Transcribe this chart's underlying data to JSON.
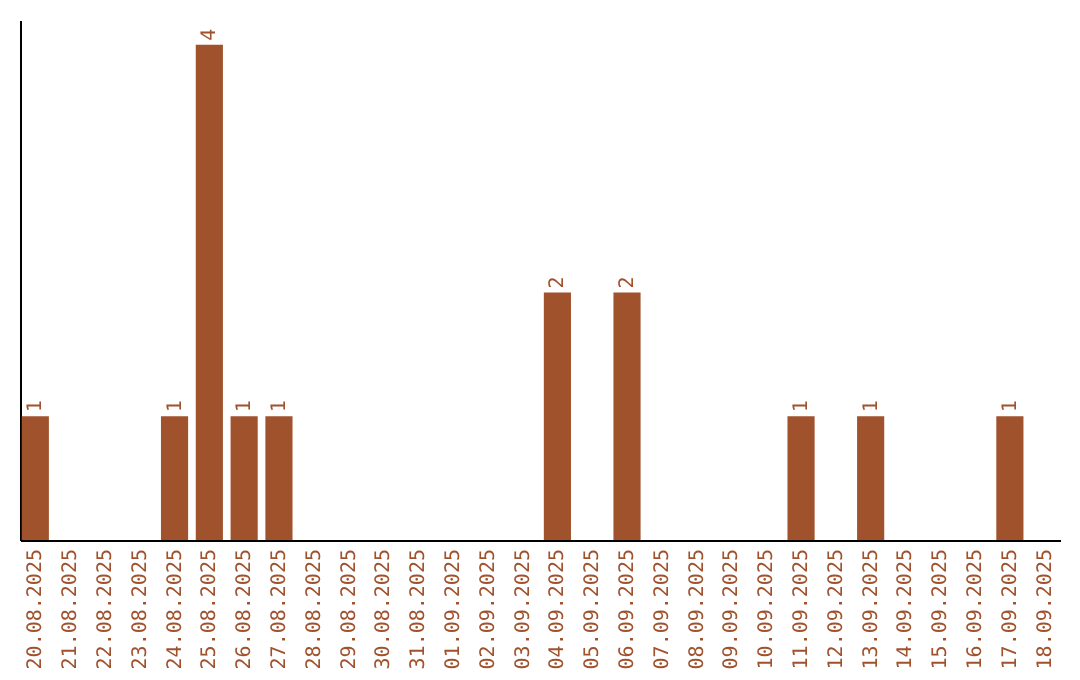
{
  "chart_data": {
    "type": "bar",
    "categories": [
      "20.08.2025",
      "21.08.2025",
      "22.08.2025",
      "23.08.2025",
      "24.08.2025",
      "25.08.2025",
      "26.08.2025",
      "27.08.2025",
      "28.08.2025",
      "29.08.2025",
      "30.08.2025",
      "31.08.2025",
      "01.09.2025",
      "02.09.2025",
      "03.09.2025",
      "04.09.2025",
      "05.09.2025",
      "06.09.2025",
      "07.09.2025",
      "08.09.2025",
      "09.09.2025",
      "10.09.2025",
      "11.09.2025",
      "12.09.2025",
      "13.09.2025",
      "14.09.2025",
      "15.09.2025",
      "16.09.2025",
      "17.09.2025",
      "18.09.2025"
    ],
    "values": [
      1,
      0,
      0,
      0,
      1,
      4,
      1,
      1,
      0,
      0,
      0,
      0,
      0,
      0,
      0,
      2,
      0,
      2,
      0,
      0,
      0,
      0,
      1,
      0,
      1,
      0,
      0,
      0,
      1,
      0
    ],
    "value_labels": [
      "1",
      null,
      null,
      null,
      "1",
      "4",
      "1",
      "1",
      null,
      null,
      null,
      null,
      null,
      null,
      null,
      "2",
      null,
      "2",
      null,
      null,
      null,
      null,
      "1",
      null,
      "1",
      null,
      null,
      null,
      "1",
      null
    ],
    "color": "#a0522d",
    "ylim": [
      0,
      4.2
    ],
    "tick_labels": "x",
    "grid": false
  }
}
